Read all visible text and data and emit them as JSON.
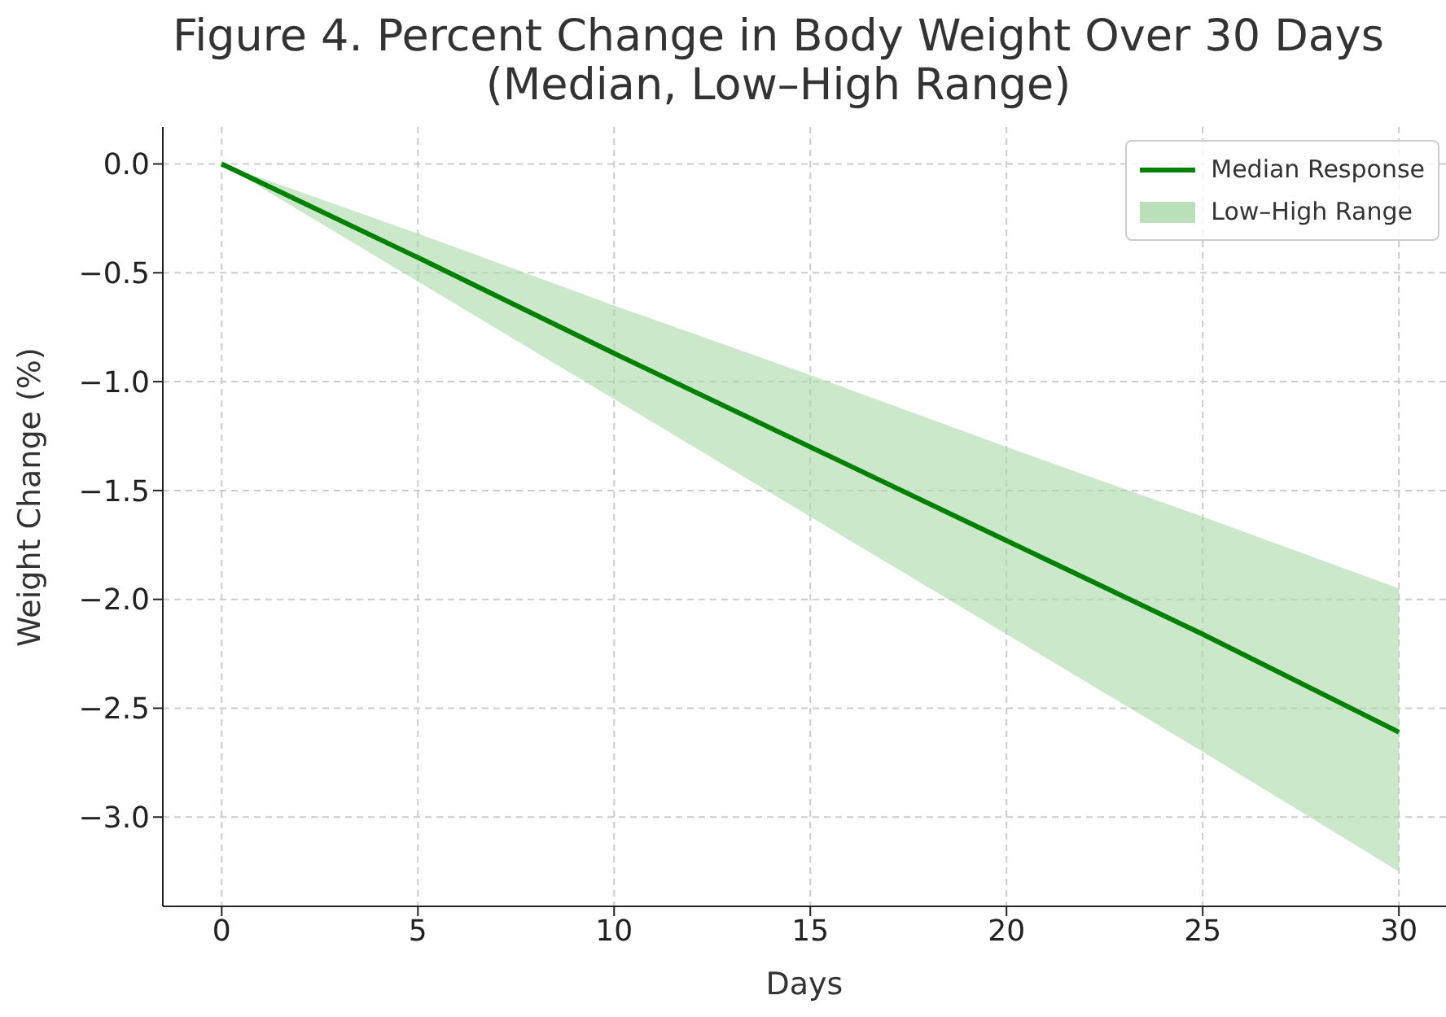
{
  "chart_data": {
    "type": "line",
    "title": "Figure 4. Percent Change in Body Weight Over 30 Days\n(Median, Low–High Range)",
    "xlabel": "Days",
    "ylabel": "Weight Change (%)",
    "x": [
      0,
      5,
      10,
      15,
      20,
      25,
      30
    ],
    "series": [
      {
        "name": "Median Response",
        "color": "#008000",
        "values": [
          0,
          -0.43,
          -0.87,
          -1.3,
          -1.73,
          -2.16,
          -2.61
        ]
      },
      {
        "name": "Low–High Range",
        "type": "area",
        "color": "#a8d8a8",
        "values": [
          null,
          null,
          null,
          null,
          null,
          null,
          null
        ],
        "lower": [
          0,
          -0.54,
          -1.08,
          -1.62,
          -2.16,
          -2.7,
          -3.25
        ],
        "upper": [
          0,
          -0.32,
          -0.65,
          -0.97,
          -1.3,
          -1.62,
          -1.95
        ]
      }
    ],
    "xlim": [
      -1.5,
      31.2
    ],
    "xticks": [
      0,
      5,
      10,
      15,
      20,
      25,
      30
    ],
    "ylim": [
      -3.41,
      0.17
    ],
    "yticks": [
      {
        "value": 0,
        "label": "0.0"
      },
      -0.5,
      {
        "value": -1,
        "label": "−1.0"
      },
      {
        "value": -1.5,
        "label": "−1.5"
      },
      {
        "value": -2,
        "label": "−2.0"
      },
      {
        "value": -2.5,
        "label": "−2.5"
      },
      {
        "value": -3,
        "label": "−3.0"
      }
    ],
    "grid": true,
    "legend": "top right",
    "line_style": "solid",
    "marker": "none"
  }
}
